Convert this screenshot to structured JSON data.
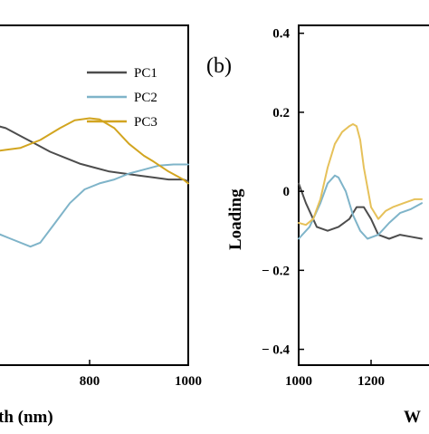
{
  "chart_data": [
    {
      "type": "line",
      "panel_label": "",
      "xlabel": "th (nm)",
      "ylabel": "",
      "xlim": [
        600,
        1000
      ],
      "ylim": [
        -0.44,
        0.42
      ],
      "xticks": [
        "800",
        "1000"
      ],
      "x_tick_values": [
        800,
        1000
      ],
      "legend_position": "top-right",
      "series": [
        {
          "name": "PC1",
          "color": "#4d4d4d",
          "x": [
            600,
            630,
            660,
            690,
            720,
            750,
            780,
            810,
            840,
            870,
            900,
            930,
            960,
            990,
            1000
          ],
          "y": [
            0.17,
            0.16,
            0.14,
            0.12,
            0.1,
            0.085,
            0.07,
            0.06,
            0.05,
            0.045,
            0.04,
            0.035,
            0.03,
            0.03,
            0.025
          ]
        },
        {
          "name": "PC2",
          "color": "#7fb4c9",
          "x": [
            600,
            640,
            680,
            700,
            730,
            760,
            790,
            820,
            850,
            880,
            910,
            940,
            970,
            1000
          ],
          "y": [
            -0.1,
            -0.12,
            -0.14,
            -0.13,
            -0.08,
            -0.03,
            0.005,
            0.02,
            0.03,
            0.045,
            0.055,
            0.065,
            0.068,
            0.068
          ]
        },
        {
          "name": "PC3",
          "color": "#d2a520",
          "x": [
            600,
            630,
            660,
            700,
            740,
            770,
            800,
            820,
            850,
            880,
            910,
            930,
            960,
            990,
            1000
          ],
          "y": [
            0.1,
            0.105,
            0.11,
            0.13,
            0.16,
            0.18,
            0.185,
            0.182,
            0.16,
            0.12,
            0.09,
            0.075,
            0.05,
            0.03,
            0.02
          ]
        }
      ]
    },
    {
      "type": "line",
      "panel_label": "(b)",
      "xlabel": "W",
      "ylabel": "Loading",
      "xlim": [
        1000,
        1400
      ],
      "ylim": [
        -0.44,
        0.42
      ],
      "xticks": [
        "1000",
        "1200"
      ],
      "x_tick_values": [
        1000,
        1200
      ],
      "yticks": [
        "0.4",
        "0.2",
        "0",
        "− 0.2",
        "− 0.4"
      ],
      "y_tick_values": [
        0.4,
        0.2,
        0,
        -0.2,
        -0.4
      ],
      "series": [
        {
          "name": "PC1",
          "color": "#4d4d4d",
          "x": [
            1000,
            1020,
            1050,
            1080,
            1110,
            1140,
            1160,
            1180,
            1200,
            1220,
            1250,
            1280,
            1310,
            1340
          ],
          "y": [
            0.02,
            -0.03,
            -0.09,
            -0.1,
            -0.09,
            -0.07,
            -0.04,
            -0.04,
            -0.07,
            -0.11,
            -0.12,
            -0.11,
            -0.115,
            -0.12
          ]
        },
        {
          "name": "PC2",
          "color": "#7fb4c9",
          "x": [
            1000,
            1030,
            1060,
            1080,
            1100,
            1110,
            1130,
            1150,
            1170,
            1190,
            1220,
            1250,
            1280,
            1310,
            1340
          ],
          "y": [
            -0.12,
            -0.09,
            -0.03,
            0.02,
            0.04,
            0.035,
            0.0,
            -0.06,
            -0.1,
            -0.12,
            -0.11,
            -0.08,
            -0.055,
            -0.045,
            -0.03
          ]
        },
        {
          "name": "PC3",
          "color": "#e6c15a",
          "x": [
            1000,
            1020,
            1040,
            1060,
            1080,
            1100,
            1120,
            1140,
            1150,
            1160,
            1170,
            1180,
            1200,
            1220,
            1240,
            1260,
            1290,
            1320,
            1340
          ],
          "y": [
            -0.08,
            -0.085,
            -0.07,
            -0.02,
            0.06,
            0.12,
            0.15,
            0.165,
            0.17,
            0.165,
            0.13,
            0.06,
            -0.04,
            -0.07,
            -0.05,
            -0.04,
            -0.03,
            -0.02,
            -0.02
          ]
        }
      ]
    }
  ]
}
